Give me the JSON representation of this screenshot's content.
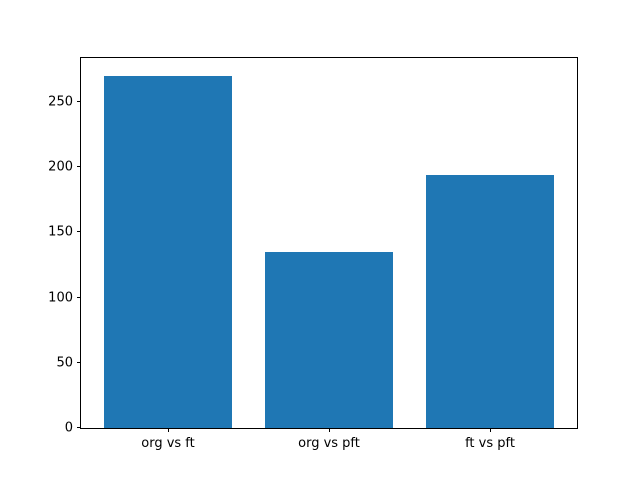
{
  "chart_data": {
    "type": "bar",
    "categories": [
      "org vs ft",
      "org vs pft",
      "ft vs pft"
    ],
    "values": [
      270,
      135,
      194
    ],
    "x_positions": [
      0,
      1,
      2
    ],
    "bar_width": 0.8,
    "bar_color": "#1f77b4",
    "title": "",
    "xlabel": "",
    "ylabel": "",
    "xlim": [
      -0.54,
      2.54
    ],
    "ylim": [
      0,
      283.5
    ],
    "yticks": [
      0,
      50,
      100,
      150,
      200,
      250
    ],
    "grid": false,
    "legend": null,
    "background_color": "#ffffff",
    "spine_color": "#000000",
    "tick_label_color": "#000000"
  }
}
